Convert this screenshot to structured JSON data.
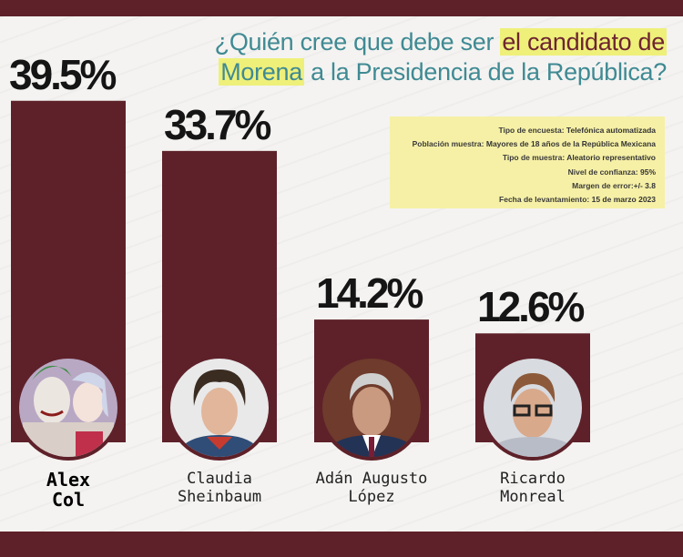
{
  "question": {
    "line1_plain": "¿Quién cree que debe ser ",
    "line1_highlight": "el candidato de",
    "line2_highlight": "Morena",
    "line2_plain": " a la Presidencia de la República?"
  },
  "info": [
    {
      "key": "Tipo de encuesta:",
      "value": " Telefónica automatizada"
    },
    {
      "key": "Población muestra:",
      "value": " Mayores de 18 años de la República Mexicana"
    },
    {
      "key": "Tipo de muestra:",
      "value": " Aleatorio representativo"
    },
    {
      "key": "Nivel de confianza:",
      "value": " 95%"
    },
    {
      "key": "Margen de error:",
      "value": "+/- 3.8"
    },
    {
      "key": "Fecha de levantamiento:",
      "value": " 15 de marzo 2023"
    }
  ],
  "colors": {
    "bar": "#5e2129",
    "accent_text": "#3f8a93",
    "highlight": "#eef07a",
    "info_bg": "#f6f0a6"
  },
  "chart_data": {
    "type": "bar",
    "categories": [
      "Alex Col",
      "Claudia Sheinbaum",
      "Adán Augusto López",
      "Ricardo Monreal"
    ],
    "values": [
      39.5,
      33.7,
      14.2,
      12.6
    ],
    "labels": [
      "39.5%",
      "33.7%",
      "14.2%",
      "12.6%"
    ],
    "name_lines": [
      [
        "Alex",
        "Col"
      ],
      [
        "Claudia",
        "Sheinbaum"
      ],
      [
        "Adán Augusto",
        "López"
      ],
      [
        "Ricardo",
        "Monreal"
      ]
    ],
    "avatars": [
      "joker-harley-photo",
      "woman-portrait-photo",
      "man-portrait-photo",
      "man-glasses-portrait-photo"
    ],
    "title": "¿Quién cree que debe ser el candidato de Morena a la Presidencia de la República?",
    "ylim": [
      0,
      40
    ],
    "grid": false,
    "legend": "none"
  }
}
